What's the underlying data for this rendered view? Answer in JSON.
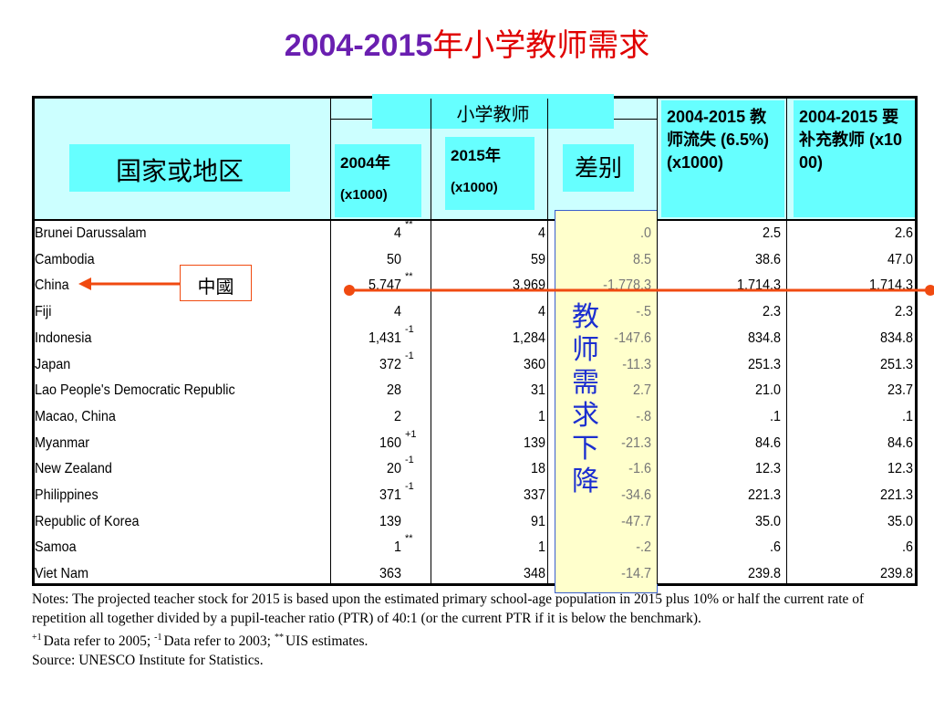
{
  "title": {
    "years": "2004-2015",
    "text": "年小学教师需求"
  },
  "header": {
    "region": "国家或地区",
    "group": "小学教师",
    "col2004": "2004年",
    "unit2004": "(x1000)",
    "col2015": "2015年",
    "unit2015": "(x1000)",
    "diff": "差别",
    "loss": "2004-2015 教师流失 (6.5%) (x1000)",
    "supply": "2004-2015 要补充教师 (x1000)"
  },
  "table": {
    "rows": [
      {
        "country": "Brunei Darussalam",
        "t2004": "4",
        "flag": "**",
        "t2015": "4",
        "diff": ".0",
        "loss": "2.5",
        "supply": "2.6"
      },
      {
        "country": "Cambodia",
        "t2004": "50",
        "t2015": "59",
        "diff": "8.5",
        "loss": "38.6",
        "supply": "47.0"
      },
      {
        "country": "China",
        "t2004": "5,747",
        "flag": "**",
        "t2015": "3,969",
        "diff": "-1,778.3",
        "loss": "1,714.3",
        "supply": "1,714.3"
      },
      {
        "country": "Fiji",
        "t2004": "4",
        "t2015": "4",
        "diff": "-.5",
        "loss": "2.3",
        "supply": "2.3"
      },
      {
        "country": "Indonesia",
        "t2004": "1,431",
        "flag": "-1",
        "t2015": "1,284",
        "diff": "-147.6",
        "loss": "834.8",
        "supply": "834.8"
      },
      {
        "country": "Japan",
        "t2004": "372",
        "flag": "-1",
        "t2015": "360",
        "diff": "-11.3",
        "loss": "251.3",
        "supply": "251.3"
      },
      {
        "country": "Lao People's Democratic Republic",
        "t2004": "28",
        "t2015": "31",
        "diff": "2.7",
        "loss": "21.0",
        "supply": "23.7"
      },
      {
        "country": "Macao, China",
        "t2004": "2",
        "t2015": "1",
        "diff": "-.8",
        "loss": ".1",
        "supply": ".1"
      },
      {
        "country": "Myanmar",
        "t2004": "160",
        "flag": "+1",
        "t2015": "139",
        "diff": "-21.3",
        "loss": "84.6",
        "supply": "84.6"
      },
      {
        "country": "New Zealand",
        "t2004": "20",
        "flag": "-1",
        "t2015": "18",
        "diff": "-1.6",
        "loss": "12.3",
        "supply": "12.3"
      },
      {
        "country": "Philippines",
        "t2004": "371",
        "flag": "-1",
        "t2015": "337",
        "diff": "-34.6",
        "loss": "221.3",
        "supply": "221.3"
      },
      {
        "country": "Republic of Korea",
        "t2004": "139",
        "t2015": "91",
        "diff": "-47.7",
        "loss": "35.0",
        "supply": "35.0"
      },
      {
        "country": "Samoa",
        "t2004": "1",
        "flag": "**",
        "t2015": "1",
        "diff": "-.2",
        "loss": ".6",
        "supply": ".6"
      },
      {
        "country": "Viet Nam",
        "t2004": "363",
        "t2015": "348",
        "diff": "-14.7",
        "loss": "239.8",
        "supply": "239.8"
      }
    ]
  },
  "annotations": {
    "china": "中國",
    "trend": "教师需求下降"
  },
  "notes": {
    "main": "Notes: The projected teacher stock for 2015 is based upon the estimated primary school-age population in 2015 plus 10% or half the current rate of repetition all together divided by a pupil-teacher ratio (PTR) of 40:1 (or the current PTR if it is below the benchmark).",
    "footnotes": [
      {
        "sup": "+1",
        "text": "Data refer to 2005;"
      },
      {
        "sup": "-1",
        "text": "Data refer to 2003;"
      },
      {
        "sup": "**",
        "text": "UIS estimates."
      }
    ],
    "source": "Source: UNESCO Institute for Statistics."
  }
}
